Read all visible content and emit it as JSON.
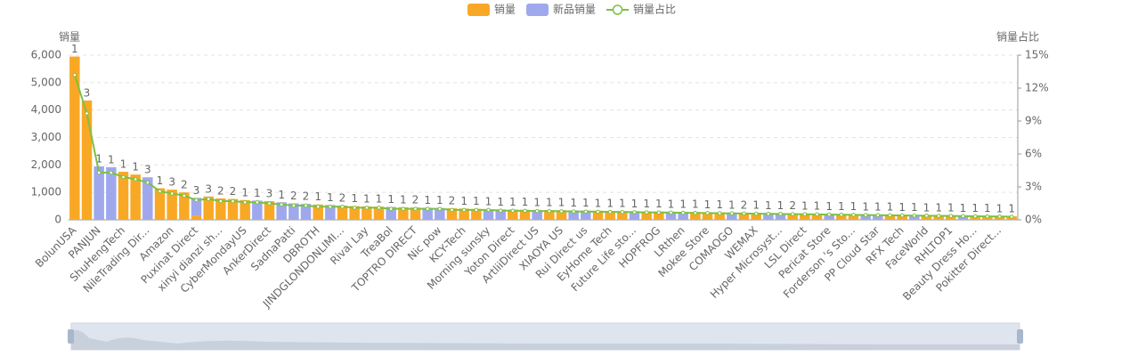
{
  "chart_data": {
    "type": "bar",
    "stacked": true,
    "legend": "top",
    "y_axis_label": "销量",
    "y2_axis_label": "销量占比",
    "categories": [
      "BolunUSA",
      null,
      "PANJUN",
      null,
      "ShuHengTech",
      null,
      "NileTrading Dir...",
      null,
      "Amazon",
      null,
      "Puxinat Direct",
      null,
      "xinyi dianzi sh...",
      null,
      "CyberMondayUS",
      null,
      "AnkerDirect",
      null,
      "SadnaPatti",
      null,
      "DBROTH",
      null,
      "JINDGLONDONLIMI...",
      null,
      "Rival Lay",
      null,
      "TreaBol",
      null,
      "TOPTRO DIRECT",
      null,
      "Nic pow",
      null,
      "KCY-Tech",
      null,
      "Morning sunsky",
      null,
      "Yoton Direct",
      null,
      "ArtliiDirect US",
      null,
      "XIAOYA US",
      null,
      "Rui Direct us",
      null,
      "EyHome Tech",
      null,
      "Future Life sto...",
      null,
      "HOPFROG",
      null,
      "LRthen",
      null,
      "Mokee Store",
      null,
      "COMAOGO",
      null,
      "WEMAX",
      null,
      "Hyper Microsyst...",
      null,
      "LSL Direct",
      null,
      "Pericat Store",
      null,
      "Forderson 's Sto...",
      null,
      "PP Cloud Star",
      null,
      "RFX Tech",
      null,
      "FaceWorld",
      null,
      "RHLTOP1",
      null,
      "Beauty Dress Ho...",
      null,
      "Pokitter Direct...",
      null
    ],
    "series": [
      {
        "name": "销量",
        "color": "#f9a825",
        "values": [
          5950,
          4350,
          0,
          0,
          1750,
          1650,
          0,
          1150,
          1100,
          1000,
          150,
          850,
          780,
          760,
          720,
          0,
          680,
          0,
          0,
          0,
          560,
          0,
          520,
          500,
          490,
          480,
          0,
          460,
          450,
          0,
          0,
          420,
          410,
          400,
          0,
          0,
          374,
          368,
          0,
          356,
          350,
          0,
          0,
          332,
          326,
          320,
          0,
          308,
          302,
          0,
          0,
          284,
          278,
          272,
          0,
          260,
          254,
          0,
          0,
          236,
          230,
          224,
          0,
          212,
          206,
          0,
          0,
          188,
          182,
          0,
          170,
          164,
          158,
          0,
          146,
          140,
          134,
          128
        ]
      },
      {
        "name": "新品销量",
        "color": "#9fa8ec",
        "values": [
          0,
          0,
          1950,
          1920,
          0,
          0,
          1550,
          0,
          0,
          0,
          650,
          0,
          0,
          0,
          0,
          700,
          0,
          640,
          600,
          580,
          0,
          540,
          0,
          0,
          0,
          0,
          470,
          0,
          0,
          440,
          430,
          0,
          0,
          0,
          390,
          380,
          0,
          0,
          362,
          0,
          0,
          344,
          338,
          0,
          0,
          0,
          314,
          0,
          0,
          296,
          290,
          0,
          0,
          0,
          266,
          0,
          0,
          248,
          242,
          0,
          0,
          0,
          218,
          0,
          0,
          200,
          194,
          0,
          0,
          176,
          0,
          0,
          0,
          152,
          0,
          0,
          0,
          0
        ]
      },
      {
        "name": "销量占比",
        "color": "#7cc142",
        "type": "line",
        "axis": "y2",
        "values": [
          13.2,
          9.7,
          4.3,
          4.3,
          3.9,
          3.7,
          3.4,
          2.6,
          2.4,
          2.2,
          1.8,
          1.9,
          1.7,
          1.7,
          1.6,
          1.6,
          1.5,
          1.4,
          1.3,
          1.3,
          1.2,
          1.2,
          1.2,
          1.1,
          1.1,
          1.1,
          1.0,
          1.0,
          1.0,
          1.0,
          1.0,
          0.9,
          0.9,
          0.9,
          0.9,
          0.84,
          0.83,
          0.82,
          0.8,
          0.79,
          0.78,
          0.76,
          0.75,
          0.74,
          0.72,
          0.71,
          0.7,
          0.68,
          0.67,
          0.66,
          0.64,
          0.63,
          0.62,
          0.6,
          0.59,
          0.58,
          0.56,
          0.55,
          0.54,
          0.52,
          0.51,
          0.5,
          0.48,
          0.47,
          0.46,
          0.44,
          0.43,
          0.42,
          0.4,
          0.39,
          0.38,
          0.36,
          0.35,
          0.34,
          0.32,
          0.31,
          0.3,
          0.28
        ]
      }
    ],
    "bar_labels": [
      1,
      3,
      1,
      1,
      1,
      1,
      3,
      1,
      3,
      2,
      3,
      3,
      2,
      2,
      1,
      1,
      3,
      1,
      2,
      2,
      1,
      1,
      2,
      1,
      1,
      1,
      1,
      1,
      2,
      1,
      1,
      2,
      1,
      1,
      1,
      1,
      1,
      1,
      1,
      1,
      1,
      1,
      1,
      1,
      1,
      1,
      1,
      1,
      1,
      1,
      1,
      1,
      1,
      1,
      1,
      2,
      1,
      1,
      1,
      2,
      1,
      1,
      1,
      1,
      1,
      1,
      1,
      1,
      1,
      1,
      1,
      1,
      1,
      1,
      1,
      1,
      1,
      1
    ],
    "ylim": [
      0,
      6000
    ],
    "yticks": [
      0,
      {
        "value": 1000,
        "label": "1,000"
      },
      {
        "value": 2000,
        "label": "2,000"
      },
      {
        "value": 3000,
        "label": "3,000"
      },
      {
        "value": 4000,
        "label": "4,000"
      },
      {
        "value": 5000,
        "label": "5,000"
      },
      {
        "value": 6000,
        "label": "6,000"
      }
    ],
    "y2lim": [
      0,
      15
    ],
    "y2ticks": [
      {
        "value": 0,
        "label": "0%"
      },
      {
        "value": 3,
        "label": "3%"
      },
      {
        "value": 6,
        "label": "6%"
      },
      {
        "value": 9,
        "label": "9%"
      },
      {
        "value": 12,
        "label": "12%"
      },
      {
        "value": 15,
        "label": "15%"
      }
    ],
    "grid": true
  }
}
